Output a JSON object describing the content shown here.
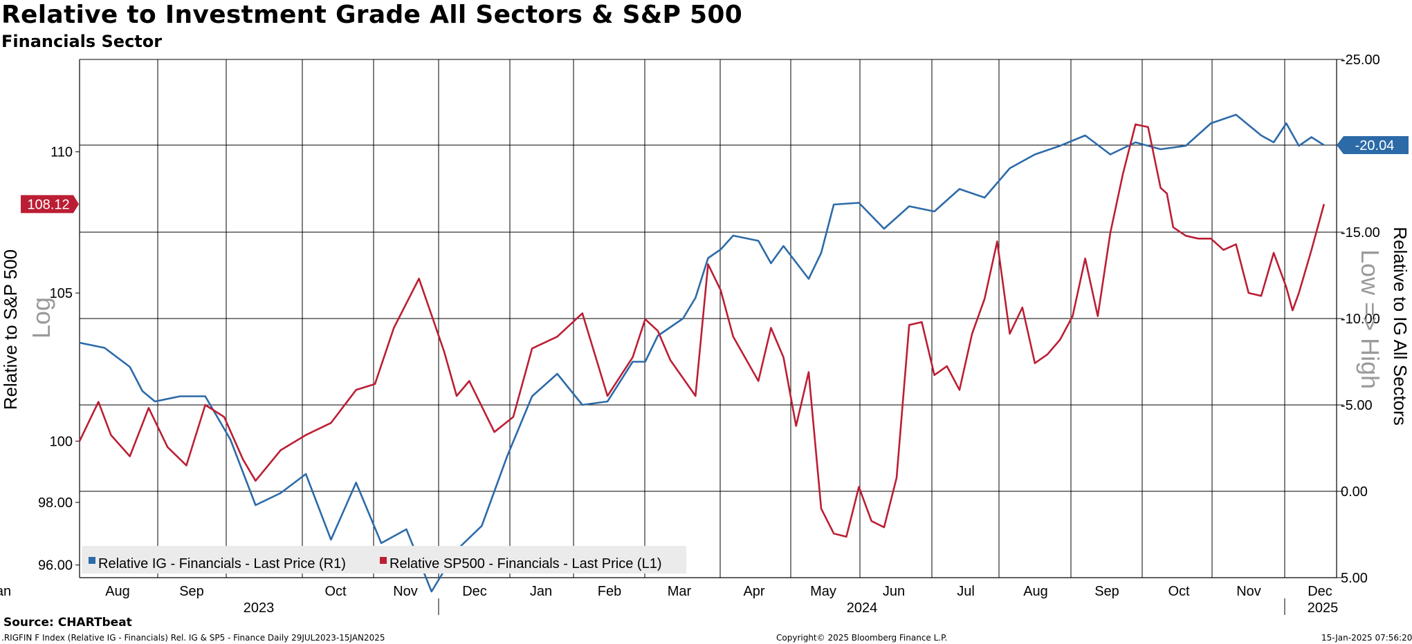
{
  "title": "Relative to Investment Grade All Sectors & S&P 500",
  "subtitle": "Financials Sector",
  "source": "Source: CHARTbeat",
  "footer": {
    "left": ".RIGFIN F Index (Relative IG - Financials) Rel. IG & SP5 - Finance  Daily 29JUL2023-15JAN2025",
    "center": "Copyright© 2025 Bloomberg Finance L.P.",
    "right": "15-Jan-2025 07:56:20"
  },
  "chart_data": {
    "type": "line",
    "title": "Relative to Investment Grade All Sectors & S&P 500",
    "subtitle": "Financials Sector",
    "x_labels": {
      "months": [
        "Aug",
        "Sep",
        "Oct",
        "Nov",
        "Dec",
        "Jan",
        "Feb",
        "Mar",
        "Apr",
        "May",
        "Jun",
        "Jul",
        "Aug",
        "Sep",
        "Oct",
        "Nov",
        "Dec",
        "Jan"
      ],
      "years": [
        "2023",
        "2024",
        "2025"
      ]
    },
    "left_axis": {
      "label": "Relative to S&P 500",
      "scale_note": "Log",
      "scale": "log",
      "range": [
        95.6,
        113.4
      ],
      "ticks": [
        "110",
        "105",
        "100",
        "98.00",
        "96.00"
      ],
      "tick_values": [
        110,
        105,
        100,
        98,
        96
      ],
      "last_value_label": "108.12"
    },
    "right_axis": {
      "label": "Relative to IG All Sectors",
      "scale_note": "Low => High",
      "inverted": true,
      "range": [
        -25.0,
        5.0
      ],
      "ticks": [
        "-25.00",
        "-15.00",
        "-10.00",
        "-5.00",
        "0.00",
        "5.00"
      ],
      "tick_values": [
        -25,
        -15,
        -10,
        -5,
        0,
        5
      ],
      "reference_line": -20.04,
      "last_value_label": "-20.04"
    },
    "series": [
      {
        "name": "Relative IG - Financials - Last Price (R1)",
        "axis": "right",
        "color": "#2c6aa8",
        "x": [
          0.0,
          0.02,
          0.04,
          0.05,
          0.06,
          0.08,
          0.1,
          0.12,
          0.14,
          0.16,
          0.18,
          0.2,
          0.22,
          0.24,
          0.26,
          0.28,
          0.3,
          0.32,
          0.34,
          0.36,
          0.38,
          0.4,
          0.42,
          0.44,
          0.45,
          0.46,
          0.47,
          0.48,
          0.49,
          0.5,
          0.51,
          0.52,
          0.54,
          0.55,
          0.56,
          0.58,
          0.59,
          0.6,
          0.62,
          0.64,
          0.66,
          0.68,
          0.7,
          0.72,
          0.74,
          0.76,
          0.78,
          0.8,
          0.82,
          0.84,
          0.86,
          0.88,
          0.9,
          0.92,
          0.94,
          0.95,
          0.96,
          0.97,
          0.98,
          0.99
        ],
        "values": [
          -8.6,
          -8.3,
          -7.2,
          -5.8,
          -5.2,
          -5.5,
          -5.5,
          -3.0,
          0.8,
          0.1,
          -1.0,
          2.8,
          -0.5,
          3.0,
          2.2,
          5.8,
          3.4,
          2.0,
          -2.0,
          -5.5,
          -6.8,
          -5.0,
          -5.2,
          -7.5,
          -7.5,
          -9.0,
          -9.5,
          -10.0,
          -11.2,
          -13.5,
          -14.0,
          -14.8,
          -14.5,
          -13.2,
          -14.2,
          -12.3,
          -13.8,
          -16.6,
          -16.7,
          -15.2,
          -16.5,
          -16.2,
          -17.5,
          -17.0,
          -18.7,
          -19.5,
          -20.0,
          -20.6,
          -19.5,
          -20.2,
          -19.8,
          -20.0,
          -21.3,
          -21.8,
          -20.6,
          -20.2,
          -21.3,
          -20.0,
          -20.5,
          -20.04
        ]
      },
      {
        "name": "Relative SP500 - Financials - Last Price (L1)",
        "axis": "left",
        "color": "#bb1e34",
        "x": [
          0.0,
          0.015,
          0.025,
          0.04,
          0.055,
          0.07,
          0.085,
          0.1,
          0.115,
          0.13,
          0.14,
          0.16,
          0.18,
          0.2,
          0.22,
          0.235,
          0.25,
          0.27,
          0.29,
          0.3,
          0.31,
          0.33,
          0.345,
          0.36,
          0.38,
          0.4,
          0.42,
          0.44,
          0.45,
          0.46,
          0.47,
          0.48,
          0.49,
          0.5,
          0.51,
          0.52,
          0.54,
          0.55,
          0.56,
          0.57,
          0.58,
          0.59,
          0.6,
          0.61,
          0.62,
          0.63,
          0.64,
          0.65,
          0.66,
          0.67,
          0.68,
          0.69,
          0.7,
          0.71,
          0.72,
          0.73,
          0.74,
          0.75,
          0.76,
          0.77,
          0.78,
          0.79,
          0.8,
          0.81,
          0.82,
          0.83,
          0.84,
          0.85,
          0.86,
          0.865,
          0.87,
          0.88,
          0.89,
          0.9,
          0.91,
          0.92,
          0.93,
          0.94,
          0.95,
          0.96,
          0.965,
          0.97,
          0.98,
          0.99
        ],
        "values": [
          100.0,
          101.3,
          100.2,
          99.5,
          101.1,
          99.8,
          99.2,
          101.2,
          100.8,
          99.4,
          98.7,
          99.7,
          100.2,
          100.6,
          101.7,
          101.9,
          103.8,
          105.5,
          103.0,
          101.5,
          102.0,
          100.3,
          100.8,
          103.1,
          103.5,
          104.3,
          101.5,
          102.8,
          104.1,
          103.7,
          102.7,
          102.1,
          101.5,
          106.0,
          105.1,
          103.5,
          102.0,
          103.8,
          102.8,
          100.5,
          102.3,
          97.8,
          97.0,
          96.9,
          98.5,
          97.4,
          97.2,
          98.8,
          103.9,
          104.0,
          102.2,
          102.5,
          101.7,
          103.6,
          104.8,
          106.8,
          103.6,
          104.5,
          102.6,
          102.9,
          103.4,
          104.2,
          106.2,
          104.2,
          107.1,
          109.2,
          111.0,
          110.9,
          108.7,
          108.5,
          107.3,
          107.0,
          106.9,
          106.9,
          106.5,
          106.7,
          105.0,
          104.9,
          106.4,
          105.2,
          104.4,
          105.0,
          106.5,
          108.12
        ]
      }
    ],
    "legend": {
      "position": "bottom-left",
      "entries": [
        "Relative IG - Financials - Last Price (R1)",
        "Relative SP500 - Financials - Last Price (L1)"
      ]
    },
    "grid": true
  }
}
